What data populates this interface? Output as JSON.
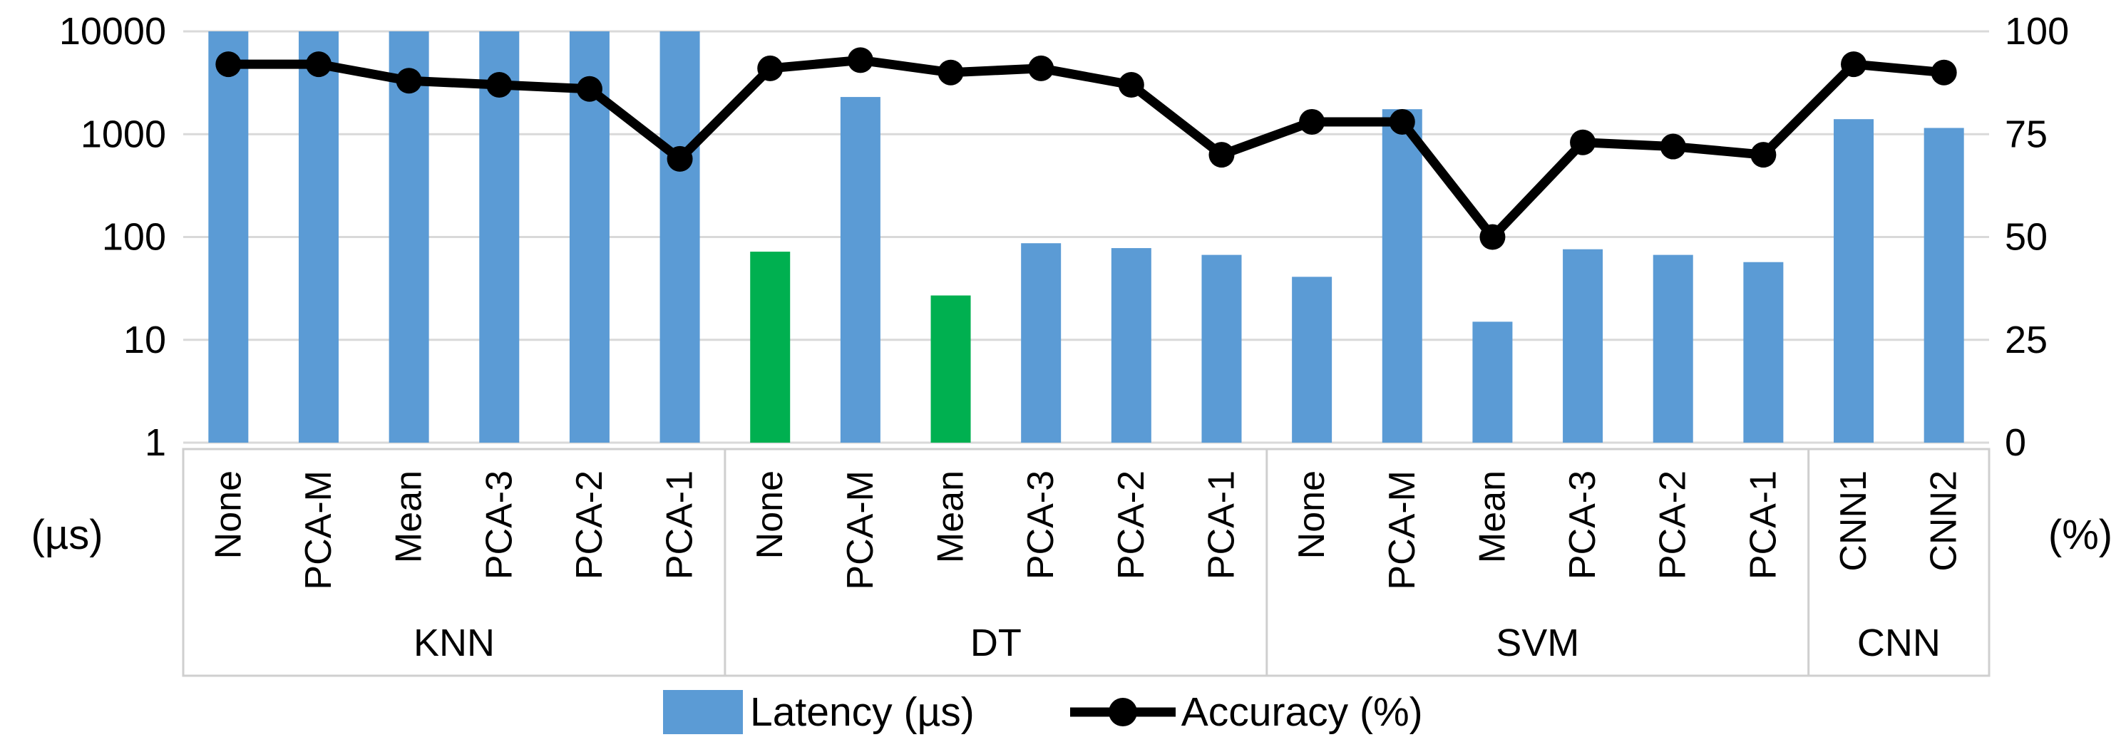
{
  "axes": {
    "left_unit": "(µs)",
    "right_unit": "(%)",
    "left_ticks": [
      10000,
      1000,
      100,
      10,
      1
    ],
    "right_ticks": [
      100,
      75,
      50,
      25,
      0
    ]
  },
  "legend": {
    "latency_label": "Latency (µs)",
    "accuracy_label": "Accuracy (%)"
  },
  "colors": {
    "blue": "#5B9BD5",
    "green": "#00B050",
    "line": "#000000",
    "grid": "#D9D9D9",
    "box": "#CFCFCF",
    "text": "#000000"
  },
  "chart_data": {
    "type": "combo-bar-line",
    "bar_series": "Latency (µs)",
    "line_series": "Accuracy (%)",
    "left_axis": {
      "label": "(µs)",
      "scale": "log",
      "min": 1,
      "max": 10000,
      "ticks": [
        10000,
        1000,
        100,
        10,
        1
      ]
    },
    "right_axis": {
      "label": "(%)",
      "scale": "linear",
      "min": 0,
      "max": 100,
      "ticks": [
        100,
        75,
        50,
        25,
        0
      ]
    },
    "grid": "horizontal-only",
    "legend_position": "bottom-center",
    "note": "KNN latency bars are clipped at the 10000 µs axis maximum; DT None and DT Mean bars are highlighted green",
    "groups": [
      {
        "name": "KNN",
        "categories": [
          "None",
          "PCA-M",
          "Mean",
          "PCA-3",
          "PCA-2",
          "PCA-1"
        ],
        "latency_us": [
          10000,
          10000,
          10000,
          10000,
          10000,
          10000
        ],
        "accuracy_pct": [
          92,
          92,
          88,
          87,
          86,
          69
        ],
        "bar_colors": [
          "blue",
          "blue",
          "blue",
          "blue",
          "blue",
          "blue"
        ]
      },
      {
        "name": "DT",
        "categories": [
          "None",
          "PCA-M",
          "Mean",
          "PCA-3",
          "PCA-2",
          "PCA-1"
        ],
        "latency_us": [
          72,
          2300,
          27,
          87,
          78,
          67
        ],
        "accuracy_pct": [
          91,
          93,
          90,
          91,
          87,
          70
        ],
        "bar_colors": [
          "green",
          "blue",
          "green",
          "blue",
          "blue",
          "blue"
        ]
      },
      {
        "name": "SVM",
        "categories": [
          "None",
          "PCA-M",
          "Mean",
          "PCA-3",
          "PCA-2",
          "PCA-1"
        ],
        "latency_us": [
          41,
          1750,
          15,
          76,
          67,
          57
        ],
        "accuracy_pct": [
          78,
          78,
          50,
          73,
          72,
          70
        ],
        "bar_colors": [
          "blue",
          "blue",
          "blue",
          "blue",
          "blue",
          "blue"
        ]
      },
      {
        "name": "CNN",
        "categories": [
          "CNN1",
          "CNN2"
        ],
        "latency_us": [
          1400,
          1150
        ],
        "accuracy_pct": [
          92,
          90
        ],
        "bar_colors": [
          "blue",
          "blue"
        ]
      }
    ]
  }
}
